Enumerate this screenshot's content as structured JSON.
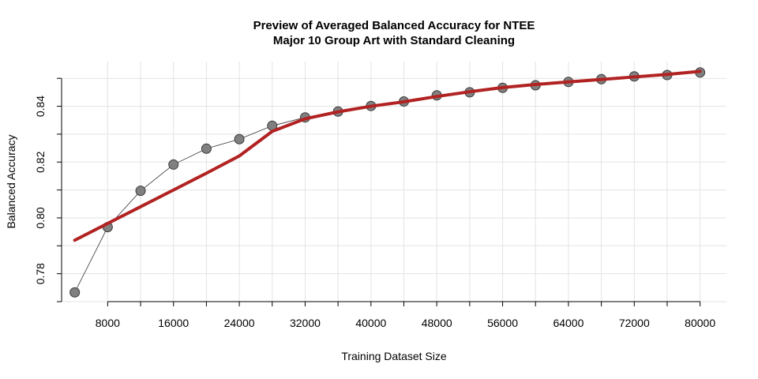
{
  "chart_data": {
    "type": "line",
    "title_line1": "Preview of Averaged Balanced Accuracy for NTEE",
    "title_line2": "Major 10 Group Art with Standard Cleaning",
    "xlabel": "Training Dataset Size",
    "ylabel": "Balanced Accuracy",
    "xlim": [
      2400,
      83200
    ],
    "ylim": [
      0.77,
      0.856
    ],
    "x_ticks": [
      8000,
      16000,
      24000,
      32000,
      40000,
      48000,
      56000,
      64000,
      72000,
      80000
    ],
    "x_minor_ticks": [
      8000,
      12000,
      16000,
      20000,
      24000,
      28000,
      32000,
      36000,
      40000,
      44000,
      48000,
      52000,
      56000,
      60000,
      64000,
      68000,
      72000,
      76000,
      80000
    ],
    "y_ticks": [
      0.78,
      0.8,
      0.82,
      0.84
    ],
    "y_minor_ticks": [
      0.77,
      0.78,
      0.79,
      0.8,
      0.81,
      0.82,
      0.83,
      0.84,
      0.85
    ],
    "grid": true,
    "series": [
      {
        "style": "points-connected",
        "color": "#808080",
        "x": [
          4000,
          8000,
          12000,
          16000,
          20000,
          24000,
          28000,
          32000,
          36000,
          40000,
          44000,
          48000,
          52000,
          56000,
          60000,
          64000,
          68000,
          72000,
          76000,
          80000
        ],
        "y": [
          0.7733,
          0.7967,
          0.8097,
          0.8191,
          0.8248,
          0.8282,
          0.833,
          0.836,
          0.8381,
          0.8401,
          0.8417,
          0.8439,
          0.845,
          0.8466,
          0.8475,
          0.8487,
          0.8497,
          0.8507,
          0.8512,
          0.8521
        ]
      },
      {
        "style": "fitted-line",
        "color": "#b22222",
        "x": [
          4000,
          8000,
          12000,
          16000,
          20000,
          24000,
          28000,
          32000,
          36000,
          40000,
          44000,
          48000,
          52000,
          56000,
          60000,
          64000,
          68000,
          72000,
          76000,
          80000
        ],
        "y": [
          0.792,
          0.798,
          0.804,
          0.81,
          0.816,
          0.8222,
          0.831,
          0.8355,
          0.838,
          0.84,
          0.8416,
          0.8435,
          0.8452,
          0.8467,
          0.8478,
          0.8487,
          0.8496,
          0.8505,
          0.8514,
          0.8525
        ]
      }
    ]
  }
}
